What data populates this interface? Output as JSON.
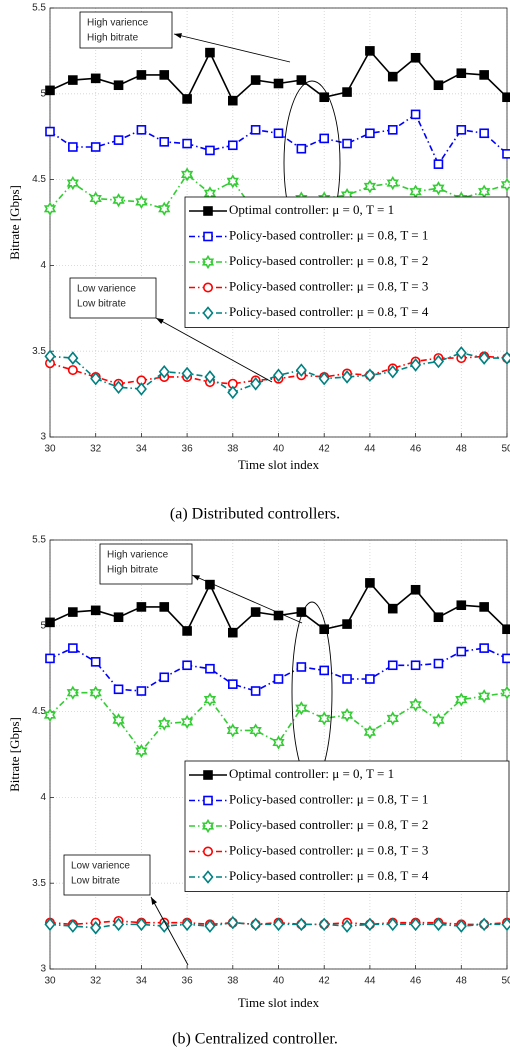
{
  "chart_data": [
    {
      "type": "line",
      "caption": "(a) Distributed controllers.",
      "xlabel": "Time slot index",
      "ylabel": "Bitrate [Gbps]",
      "x": [
        30,
        31,
        32,
        33,
        34,
        35,
        36,
        37,
        38,
        39,
        40,
        41,
        42,
        43,
        44,
        45,
        46,
        47,
        48,
        49,
        50
      ],
      "xlim": [
        30,
        50
      ],
      "xticks": [
        30,
        32,
        34,
        36,
        38,
        40,
        42,
        44,
        46,
        48,
        50
      ],
      "ylim": [
        3,
        5.5
      ],
      "yticks": [
        3,
        3.5,
        4,
        4.5,
        5,
        5.5
      ],
      "grid": true,
      "legend": "right",
      "series": [
        {
          "name": "Optimal controller: μ = 0, T = 1",
          "color": "#000000",
          "marker": "square",
          "filled": true,
          "linestyle": "solid",
          "values": [
            5.02,
            5.08,
            5.09,
            5.05,
            5.11,
            5.11,
            4.97,
            5.24,
            4.96,
            5.08,
            5.06,
            5.08,
            4.98,
            5.01,
            5.25,
            5.1,
            5.21,
            5.05,
            5.12,
            5.11,
            4.98
          ]
        },
        {
          "name": "Policy-based controller: μ = 0.8, T = 1",
          "color": "#0000ff",
          "marker": "square",
          "filled": false,
          "linestyle": "dashdot",
          "values": [
            4.78,
            4.69,
            4.69,
            4.73,
            4.79,
            4.72,
            4.71,
            4.67,
            4.7,
            4.79,
            4.77,
            4.68,
            4.74,
            4.71,
            4.77,
            4.79,
            4.88,
            4.59,
            4.79,
            4.77,
            4.65
          ]
        },
        {
          "name": "Policy-based controller: μ = 0.8, T = 2",
          "color": "#33cc33",
          "marker": "star",
          "filled": false,
          "linestyle": "dashdot",
          "values": [
            4.33,
            4.48,
            4.39,
            4.38,
            4.37,
            4.33,
            4.53,
            4.42,
            4.49,
            4.31,
            4.35,
            4.39,
            4.39,
            4.41,
            4.46,
            4.48,
            4.43,
            4.45,
            4.39,
            4.43,
            4.47
          ]
        },
        {
          "name": "Policy-based controller: μ = 0.8, T = 3",
          "color": "#ff0000",
          "marker": "circle",
          "filled": false,
          "linestyle": "dashdot",
          "values": [
            3.43,
            3.39,
            3.35,
            3.31,
            3.33,
            3.35,
            3.35,
            3.32,
            3.31,
            3.33,
            3.34,
            3.36,
            3.35,
            3.37,
            3.36,
            3.4,
            3.44,
            3.46,
            3.46,
            3.47,
            3.46
          ]
        },
        {
          "name": "Policy-based controller: μ = 0.8, T = 4",
          "color": "#008080",
          "marker": "diamond",
          "filled": false,
          "linestyle": "dashdot",
          "values": [
            3.47,
            3.46,
            3.34,
            3.29,
            3.28,
            3.38,
            3.37,
            3.35,
            3.26,
            3.31,
            3.36,
            3.39,
            3.34,
            3.35,
            3.36,
            3.38,
            3.42,
            3.44,
            3.49,
            3.46,
            3.46
          ]
        }
      ],
      "annotations": [
        {
          "lines": [
            "High varience",
            "High bitrate"
          ]
        },
        {
          "lines": [
            "Low varience",
            "Low bitrate"
          ]
        }
      ]
    },
    {
      "type": "line",
      "caption": "(b) Centralized controller.",
      "xlabel": "Time slot index",
      "ylabel": "Bitrate [Gbps]",
      "x": [
        30,
        31,
        32,
        33,
        34,
        35,
        36,
        37,
        38,
        39,
        40,
        41,
        42,
        43,
        44,
        45,
        46,
        47,
        48,
        49,
        50
      ],
      "xlim": [
        30,
        50
      ],
      "xticks": [
        30,
        32,
        34,
        36,
        38,
        40,
        42,
        44,
        46,
        48,
        50
      ],
      "ylim": [
        3,
        5.5
      ],
      "yticks": [
        3,
        3.5,
        4,
        4.5,
        5,
        5.5
      ],
      "grid": true,
      "legend": "right",
      "series": [
        {
          "name": "Optimal controller: μ = 0, T = 1",
          "color": "#000000",
          "marker": "square",
          "filled": true,
          "linestyle": "solid",
          "values": [
            5.02,
            5.08,
            5.09,
            5.05,
            5.11,
            5.11,
            4.97,
            5.24,
            4.96,
            5.08,
            5.06,
            5.08,
            4.98,
            5.01,
            5.25,
            5.1,
            5.21,
            5.05,
            5.12,
            5.11,
            4.98
          ]
        },
        {
          "name": "Policy-based controller: μ = 0.8, T = 1",
          "color": "#0000ff",
          "marker": "square",
          "filled": false,
          "linestyle": "dashdot",
          "values": [
            4.81,
            4.87,
            4.79,
            4.63,
            4.62,
            4.7,
            4.77,
            4.75,
            4.66,
            4.62,
            4.69,
            4.76,
            4.74,
            4.69,
            4.69,
            4.77,
            4.77,
            4.78,
            4.85,
            4.87,
            4.81
          ]
        },
        {
          "name": "Policy-based controller: μ = 0.8, T = 2",
          "color": "#33cc33",
          "marker": "star",
          "filled": false,
          "linestyle": "dashdot",
          "values": [
            4.48,
            4.61,
            4.61,
            4.45,
            4.27,
            4.43,
            4.44,
            4.57,
            4.39,
            4.39,
            4.32,
            4.52,
            4.46,
            4.48,
            4.38,
            4.46,
            4.54,
            4.45,
            4.57,
            4.59,
            4.61
          ]
        },
        {
          "name": "Policy-based controller: μ = 0.8, T = 3",
          "color": "#ff0000",
          "marker": "circle",
          "filled": false,
          "linestyle": "dashdot",
          "values": [
            3.27,
            3.26,
            3.27,
            3.28,
            3.27,
            3.27,
            3.27,
            3.26,
            3.27,
            3.26,
            3.27,
            3.26,
            3.26,
            3.27,
            3.26,
            3.27,
            3.27,
            3.27,
            3.26,
            3.26,
            3.27
          ]
        },
        {
          "name": "Policy-based controller: μ = 0.8, T = 4",
          "color": "#008080",
          "marker": "diamond",
          "filled": false,
          "linestyle": "dashdot",
          "values": [
            3.26,
            3.25,
            3.24,
            3.26,
            3.26,
            3.25,
            3.26,
            3.25,
            3.27,
            3.26,
            3.26,
            3.26,
            3.26,
            3.25,
            3.26,
            3.26,
            3.26,
            3.26,
            3.25,
            3.26,
            3.26
          ]
        }
      ],
      "annotations": [
        {
          "lines": [
            "High varience",
            "High bitrate"
          ]
        },
        {
          "lines": [
            "Low varience",
            "Low bitrate"
          ]
        }
      ]
    }
  ]
}
